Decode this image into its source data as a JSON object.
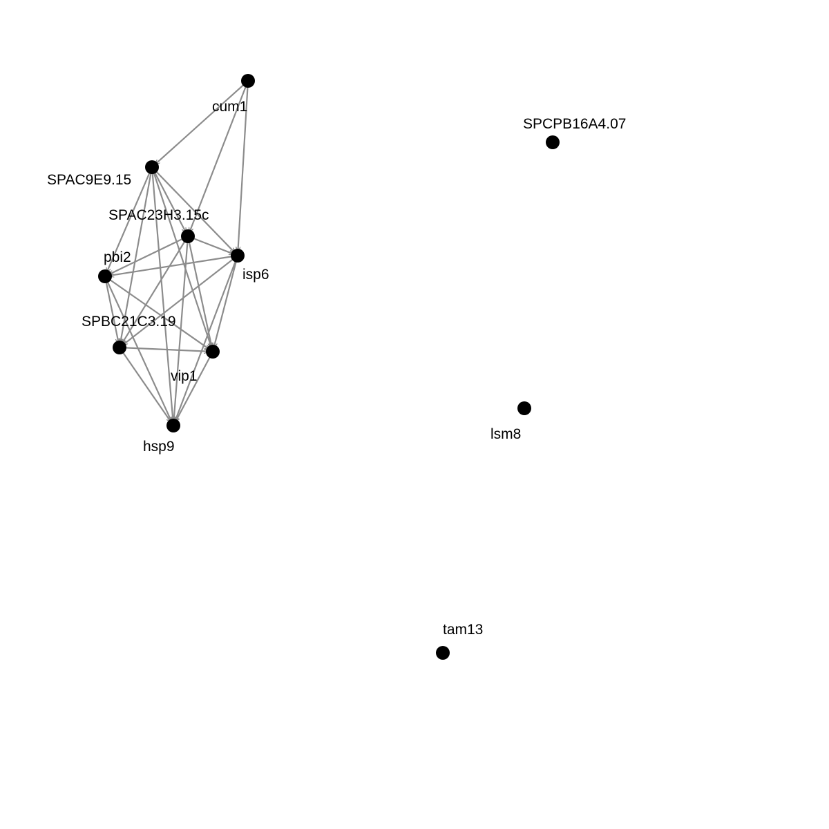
{
  "graph": {
    "directed": true,
    "colors": {
      "edge": "#8c8c8c",
      "node": "#000000",
      "label": "#000000",
      "background": "#ffffff"
    },
    "nodes": [
      {
        "id": "cum1",
        "label": "cum1"
      },
      {
        "id": "SPAC9E9.15",
        "label": "SPAC9E9.15"
      },
      {
        "id": "SPAC23H3.15c",
        "label": "SPAC23H3.15c"
      },
      {
        "id": "isp6",
        "label": "isp6"
      },
      {
        "id": "pbi2",
        "label": "pbi2"
      },
      {
        "id": "SPBC21C3.19",
        "label": "SPBC21C3.19"
      },
      {
        "id": "vip1",
        "label": "vip1"
      },
      {
        "id": "hsp9",
        "label": "hsp9"
      },
      {
        "id": "SPCPB16A4.07",
        "label": "SPCPB16A4.07"
      },
      {
        "id": "lsm8",
        "label": "lsm8"
      },
      {
        "id": "tam13",
        "label": "tam13"
      }
    ],
    "edges": [
      {
        "source": "cum1",
        "target": "SPAC9E9.15"
      },
      {
        "source": "cum1",
        "target": "SPAC23H3.15c"
      },
      {
        "source": "cum1",
        "target": "isp6"
      },
      {
        "source": "SPAC9E9.15",
        "target": "SPAC23H3.15c"
      },
      {
        "source": "SPAC9E9.15",
        "target": "isp6"
      },
      {
        "source": "SPAC9E9.15",
        "target": "pbi2"
      },
      {
        "source": "SPAC9E9.15",
        "target": "SPBC21C3.19"
      },
      {
        "source": "SPAC9E9.15",
        "target": "vip1"
      },
      {
        "source": "SPAC9E9.15",
        "target": "hsp9"
      },
      {
        "source": "SPAC23H3.15c",
        "target": "isp6"
      },
      {
        "source": "SPAC23H3.15c",
        "target": "pbi2"
      },
      {
        "source": "SPAC23H3.15c",
        "target": "SPBC21C3.19"
      },
      {
        "source": "SPAC23H3.15c",
        "target": "vip1"
      },
      {
        "source": "SPAC23H3.15c",
        "target": "hsp9"
      },
      {
        "source": "isp6",
        "target": "pbi2"
      },
      {
        "source": "isp6",
        "target": "SPBC21C3.19"
      },
      {
        "source": "isp6",
        "target": "vip1"
      },
      {
        "source": "isp6",
        "target": "hsp9"
      },
      {
        "source": "pbi2",
        "target": "SPBC21C3.19"
      },
      {
        "source": "pbi2",
        "target": "vip1"
      },
      {
        "source": "pbi2",
        "target": "hsp9"
      },
      {
        "source": "SPBC21C3.19",
        "target": "vip1"
      },
      {
        "source": "SPBC21C3.19",
        "target": "hsp9"
      },
      {
        "source": "vip1",
        "target": "hsp9"
      }
    ]
  }
}
